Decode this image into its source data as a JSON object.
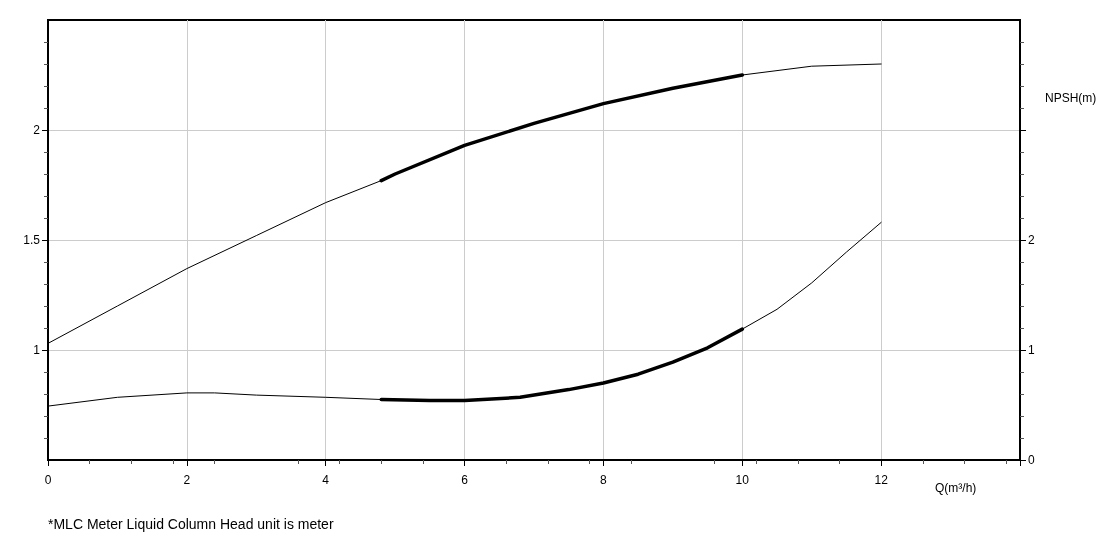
{
  "chart_data": {
    "type": "line",
    "xlabel": "Q(m³/h)",
    "y2label": "NPSH(m)",
    "annotations": [
      "*MLC Meter Liquid Column Head unit is meter"
    ],
    "xlim": [
      0,
      14
    ],
    "xticks": [
      0,
      2,
      4,
      6,
      8,
      10,
      12,
      {
        "value": 14,
        "label": null
      }
    ],
    "ylim": [
      0.5,
      2.5
    ],
    "yticks": [
      1,
      1.5,
      2
    ],
    "y2lim": [
      0,
      4
    ],
    "y2ticks": [
      0,
      1,
      2,
      {
        "value": 3,
        "label": null
      }
    ],
    "grid": true,
    "marker": "none",
    "line_style": "solid",
    "series": [
      {
        "color": "#000000",
        "x": [
          0,
          1,
          2,
          3,
          4,
          4.8,
          5,
          6,
          7,
          8,
          9,
          10,
          11,
          12
        ],
        "values": [
          1.03,
          1.2,
          1.37,
          1.52,
          1.67,
          1.77,
          1.8,
          1.93,
          2.03,
          2.12,
          2.19,
          2.25,
          2.29,
          2.3
        ]
      },
      {
        "color": "#000000",
        "x": [
          4.8,
          5,
          6,
          7,
          8,
          9,
          10
        ],
        "values": [
          1.77,
          1.8,
          1.93,
          2.03,
          2.12,
          2.19,
          2.25
        ]
      },
      {
        "color": "#000000",
        "axis": "y2",
        "x": [
          0,
          1,
          2,
          2.4,
          3,
          4,
          4.8,
          5.5,
          6,
          6.8,
          7.5,
          8,
          8.5,
          9,
          9.5,
          10,
          10.5,
          11,
          11.5,
          12
        ],
        "values": [
          0.49,
          0.57,
          0.61,
          0.61,
          0.59,
          0.57,
          0.55,
          0.54,
          0.54,
          0.57,
          0.64,
          0.7,
          0.78,
          0.89,
          1.02,
          1.19,
          1.37,
          1.61,
          1.89,
          2.16
        ]
      },
      {
        "color": "#000000",
        "axis": "y2",
        "x": [
          4.8,
          5.5,
          6,
          6.8,
          7.5,
          8,
          8.5,
          9,
          9.5,
          10
        ],
        "values": [
          0.55,
          0.54,
          0.54,
          0.57,
          0.64,
          0.7,
          0.78,
          0.89,
          1.02,
          1.19
        ]
      }
    ]
  }
}
